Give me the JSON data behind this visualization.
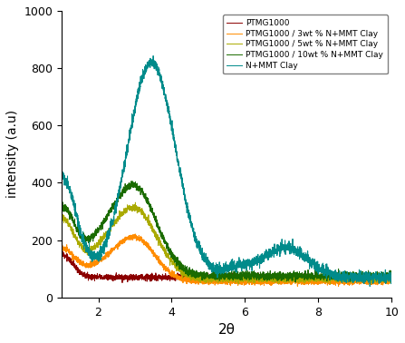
{
  "title": "",
  "xlabel": "2θ",
  "ylabel": "intensity (a.u)",
  "xlim": [
    1,
    10
  ],
  "ylim": [
    0,
    1000
  ],
  "xticks": [
    2,
    4,
    6,
    8,
    10
  ],
  "yticks": [
    0,
    200,
    400,
    600,
    800,
    1000
  ],
  "legend_labels": [
    "PTMG1000",
    "PTMG1000 / 3wt % N+MMT Clay",
    "PTMG1000 / 5wt % N+MMT Clay",
    "PTMG1000 / 10wt % N+MMT Clay",
    "N+MMT Clay"
  ],
  "colors": {
    "PTMG1000": "#8B0000",
    "3wt": "#FF8C00",
    "5wt": "#AAAA00",
    "10wt": "#1A6B00",
    "clay": "#008B8B"
  },
  "background_color": "#ffffff",
  "figsize": [
    4.47,
    3.78
  ],
  "dpi": 100
}
